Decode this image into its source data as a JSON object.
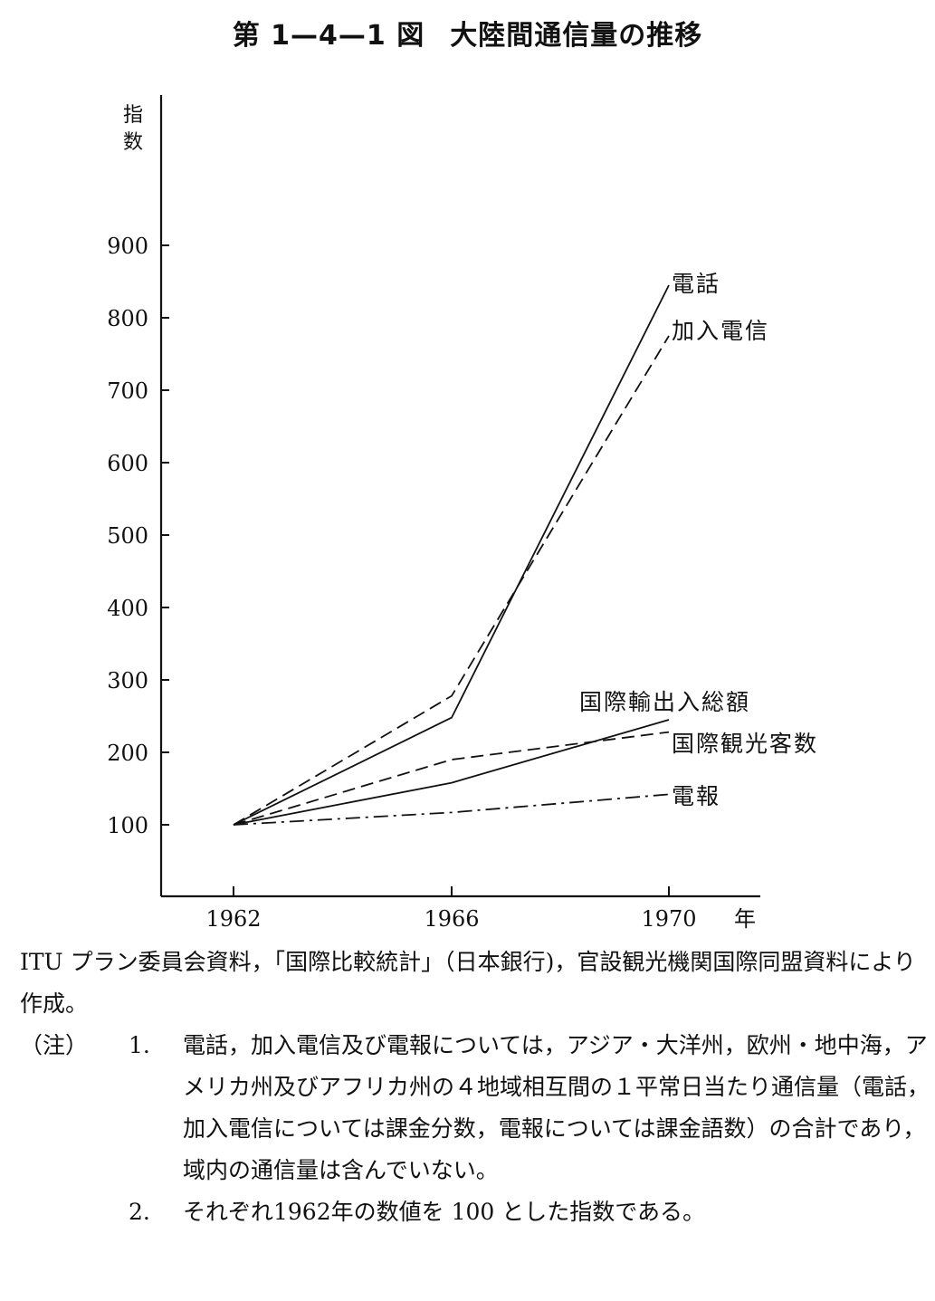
{
  "title": {
    "figure_number": "第 1—4—1 図",
    "text": "大陸間通信量の推移"
  },
  "chart_data": {
    "type": "line",
    "ylabel": "指数",
    "xlabel": "年",
    "x": [
      "1962",
      "1966",
      "1970"
    ],
    "ylim": [
      0,
      1000
    ],
    "yticks": [
      "100",
      "200",
      "300",
      "400",
      "500",
      "600",
      "700",
      "800",
      "900"
    ],
    "series": [
      {
        "name": "電話",
        "values": [
          100,
          248,
          845
        ],
        "style": "solid"
      },
      {
        "name": "加入電信",
        "values": [
          100,
          278,
          775
        ],
        "style": "dashed"
      },
      {
        "name": "国際輸出入総額",
        "values": [
          100,
          158,
          245
        ],
        "style": "solid"
      },
      {
        "name": "国際観光客数",
        "values": [
          100,
          190,
          228
        ],
        "style": "dashed"
      },
      {
        "name": "電報",
        "values": [
          100,
          117,
          142
        ],
        "style": "dashdot"
      }
    ],
    "grid": false,
    "line_color": "#111111"
  },
  "source": "ITU プラン委員会資料，「国際比較統計」（日本銀行)，官設観光機関国際同盟資料により作成。",
  "notes": {
    "label": "（注）",
    "items": [
      {
        "num": "1.",
        "text": "電話，加入電信及び電報については，アジア・大洋州，欧州・地中海，アメリカ州及びアフリカ州の４地域相互間の１平常日当たり通信量（電話，加入電信については課金分数，電報については課金語数）の合計であり，域内の通信量は含んでいない。"
      },
      {
        "num": "2.",
        "text": "それぞれ1962年の数値を 100 とした指数である。"
      }
    ]
  }
}
